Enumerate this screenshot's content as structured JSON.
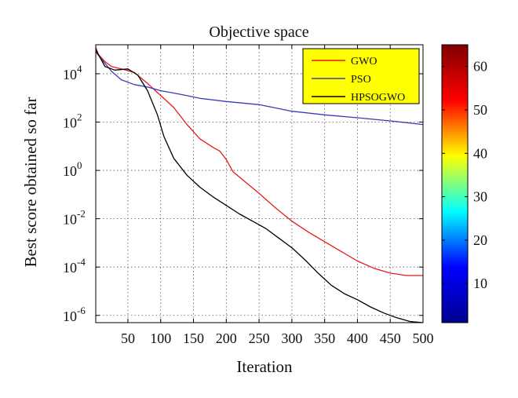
{
  "chart_data": {
    "type": "line",
    "title": "Objective space",
    "xlabel": "Iteration",
    "ylabel": "Best score obtained so far",
    "xlim": [
      1,
      500
    ],
    "ylim_log10": [
      -6.3,
      5.2
    ],
    "yscale": "log",
    "grid": true,
    "legend_position": "top-right",
    "x_ticks": [
      "50",
      "100",
      "150",
      "200",
      "250",
      "300",
      "350",
      "400",
      "450",
      "500"
    ],
    "x_tick_values": [
      50,
      100,
      150,
      200,
      250,
      300,
      350,
      400,
      450,
      500
    ],
    "y_ticks": [
      {
        "base": "10",
        "exp": "4",
        "log10": 4
      },
      {
        "base": "10",
        "exp": "2",
        "log10": 2
      },
      {
        "base": "10",
        "exp": "0",
        "log10": 0
      },
      {
        "base": "10",
        "exp": "-2",
        "log10": -2
      },
      {
        "base": "10",
        "exp": "-4",
        "log10": -4
      },
      {
        "base": "10",
        "exp": "-6",
        "log10": -6
      }
    ],
    "series": [
      {
        "name": "GWO",
        "color": "#e8191a",
        "points": [
          [
            1,
            5.1
          ],
          [
            5,
            4.8
          ],
          [
            15,
            4.5
          ],
          [
            25,
            4.3
          ],
          [
            40,
            4.2
          ],
          [
            60,
            4.05
          ],
          [
            80,
            3.6
          ],
          [
            100,
            3.1
          ],
          [
            120,
            2.6
          ],
          [
            140,
            1.9
          ],
          [
            160,
            1.3
          ],
          [
            180,
            0.95
          ],
          [
            190,
            0.8
          ],
          [
            200,
            0.45
          ],
          [
            210,
            -0.05
          ],
          [
            230,
            -0.5
          ],
          [
            250,
            -0.95
          ],
          [
            275,
            -1.55
          ],
          [
            300,
            -2.1
          ],
          [
            325,
            -2.55
          ],
          [
            350,
            -2.95
          ],
          [
            375,
            -3.35
          ],
          [
            400,
            -3.75
          ],
          [
            425,
            -4.05
          ],
          [
            450,
            -4.25
          ],
          [
            475,
            -4.35
          ],
          [
            500,
            -4.35
          ]
        ]
      },
      {
        "name": "PSO",
        "color": "#3a3ab8",
        "points": [
          [
            1,
            4.9
          ],
          [
            10,
            4.6
          ],
          [
            25,
            4.1
          ],
          [
            40,
            3.75
          ],
          [
            60,
            3.55
          ],
          [
            80,
            3.45
          ],
          [
            100,
            3.3
          ],
          [
            130,
            3.15
          ],
          [
            160,
            2.98
          ],
          [
            200,
            2.85
          ],
          [
            250,
            2.72
          ],
          [
            300,
            2.45
          ],
          [
            350,
            2.3
          ],
          [
            400,
            2.18
          ],
          [
            450,
            2.05
          ],
          [
            500,
            1.9
          ]
        ]
      },
      {
        "name": "HPSOGWO",
        "color": "#000000",
        "points": [
          [
            1,
            5.0
          ],
          [
            5,
            4.8
          ],
          [
            15,
            4.3
          ],
          [
            30,
            4.15
          ],
          [
            50,
            4.2
          ],
          [
            65,
            3.95
          ],
          [
            80,
            3.3
          ],
          [
            95,
            2.3
          ],
          [
            105,
            1.4
          ],
          [
            120,
            0.5
          ],
          [
            140,
            -0.2
          ],
          [
            160,
            -0.7
          ],
          [
            180,
            -1.1
          ],
          [
            200,
            -1.45
          ],
          [
            220,
            -1.8
          ],
          [
            240,
            -2.1
          ],
          [
            260,
            -2.4
          ],
          [
            280,
            -2.8
          ],
          [
            300,
            -3.2
          ],
          [
            320,
            -3.7
          ],
          [
            340,
            -4.25
          ],
          [
            360,
            -4.75
          ],
          [
            380,
            -5.1
          ],
          [
            400,
            -5.35
          ],
          [
            420,
            -5.65
          ],
          [
            440,
            -5.9
          ],
          [
            460,
            -6.1
          ],
          [
            480,
            -6.25
          ],
          [
            500,
            -6.3
          ]
        ]
      }
    ],
    "colorbar": {
      "ticks": [
        "10",
        "20",
        "30",
        "40",
        "50",
        "60"
      ],
      "tick_values": [
        10,
        20,
        30,
        40,
        50,
        60
      ],
      "range": [
        1,
        65
      ],
      "colormap": "jet",
      "jet_stops": [
        "#00008f",
        "#0000ff",
        "#00ffff",
        "#ffff00",
        "#ff0000",
        "#800000"
      ]
    },
    "legend_style": {
      "background": "#ffff00",
      "border": "#000000"
    },
    "grid_color": "#555555"
  }
}
